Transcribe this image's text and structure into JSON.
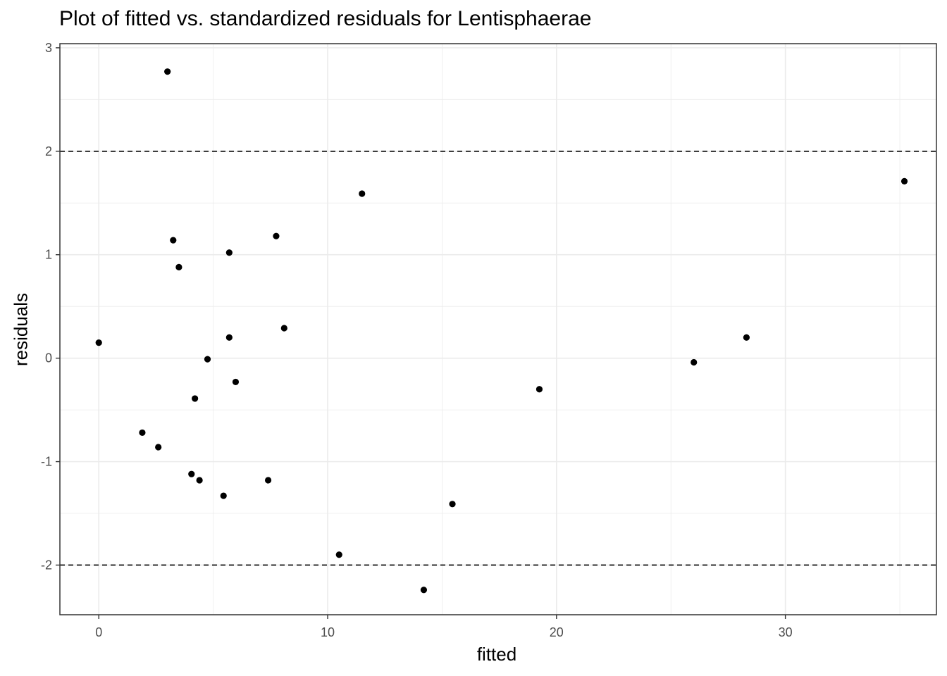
{
  "chart_data": {
    "type": "scatter",
    "title": "Plot of fitted vs. standardized residuals for Lentisphaerae",
    "xlabel": "fitted",
    "ylabel": "residuals",
    "xlim": [
      -1.7,
      36.6
    ],
    "ylim": [
      -2.48,
      3.04
    ],
    "x_ticks": [
      0,
      10,
      20,
      30
    ],
    "x_tick_labels": [
      "0",
      "10",
      "20",
      "30"
    ],
    "y_ticks": [
      -2,
      -1,
      0,
      1,
      2,
      3
    ],
    "y_tick_labels": [
      "-2",
      "-1",
      "0",
      "1",
      "2",
      "3"
    ],
    "grid": true,
    "reference_lines": [
      {
        "y": 2,
        "style": "dashed"
      },
      {
        "y": -2,
        "style": "dashed"
      }
    ],
    "points": [
      {
        "x": 0.0,
        "y": 0.15
      },
      {
        "x": 1.9,
        "y": -0.72
      },
      {
        "x": 2.6,
        "y": -0.86
      },
      {
        "x": 3.0,
        "y": 2.77
      },
      {
        "x": 3.25,
        "y": 1.14
      },
      {
        "x": 3.5,
        "y": 0.88
      },
      {
        "x": 4.05,
        "y": -1.12
      },
      {
        "x": 4.2,
        "y": -0.39
      },
      {
        "x": 4.4,
        "y": -1.18
      },
      {
        "x": 4.75,
        "y": -0.01
      },
      {
        "x": 5.45,
        "y": -1.33
      },
      {
        "x": 5.7,
        "y": 1.02
      },
      {
        "x": 5.7,
        "y": 0.2
      },
      {
        "x": 5.98,
        "y": -0.23
      },
      {
        "x": 7.4,
        "y": -1.18
      },
      {
        "x": 7.75,
        "y": 1.18
      },
      {
        "x": 8.1,
        "y": 0.29
      },
      {
        "x": 10.5,
        "y": -1.9
      },
      {
        "x": 11.5,
        "y": 1.59
      },
      {
        "x": 14.2,
        "y": -2.24
      },
      {
        "x": 15.45,
        "y": -1.41
      },
      {
        "x": 19.25,
        "y": -0.3
      },
      {
        "x": 26.0,
        "y": -0.04
      },
      {
        "x": 28.3,
        "y": 0.2
      },
      {
        "x": 35.2,
        "y": 1.71
      }
    ],
    "point_color": "#000000",
    "grid_color": "#ebebeb",
    "panel_border_color": "#333333"
  }
}
